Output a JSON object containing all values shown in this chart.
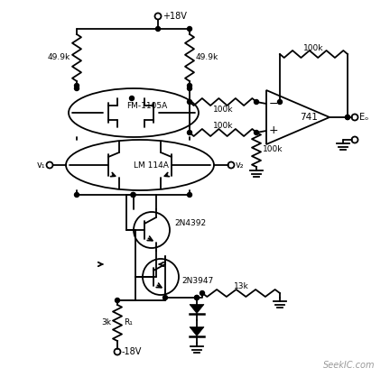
{
  "bg_color": "#ffffff",
  "fg_color": "#000000",
  "fig_width": 4.32,
  "fig_height": 4.18,
  "dpi": 100,
  "watermark": "SeekIC.com",
  "labels": {
    "plus18v": "+18V",
    "minus18v": "-18V",
    "v1": "v₁",
    "v2": "v₂",
    "Eo": "Eₒ",
    "fm1105a": "FM-1105A",
    "lm114a": "LM 114A",
    "t1": "2N4392",
    "t2": "2N3947",
    "r1_label": "R₁",
    "r49k_1": "49.9k",
    "r49k_2": "49.9k",
    "r100k_1": "100k",
    "r100k_2": "100k",
    "r100k_3": "100k",
    "r100k_fb": "100k",
    "r13k": "13k",
    "r3k": "3k",
    "op741": "741"
  }
}
